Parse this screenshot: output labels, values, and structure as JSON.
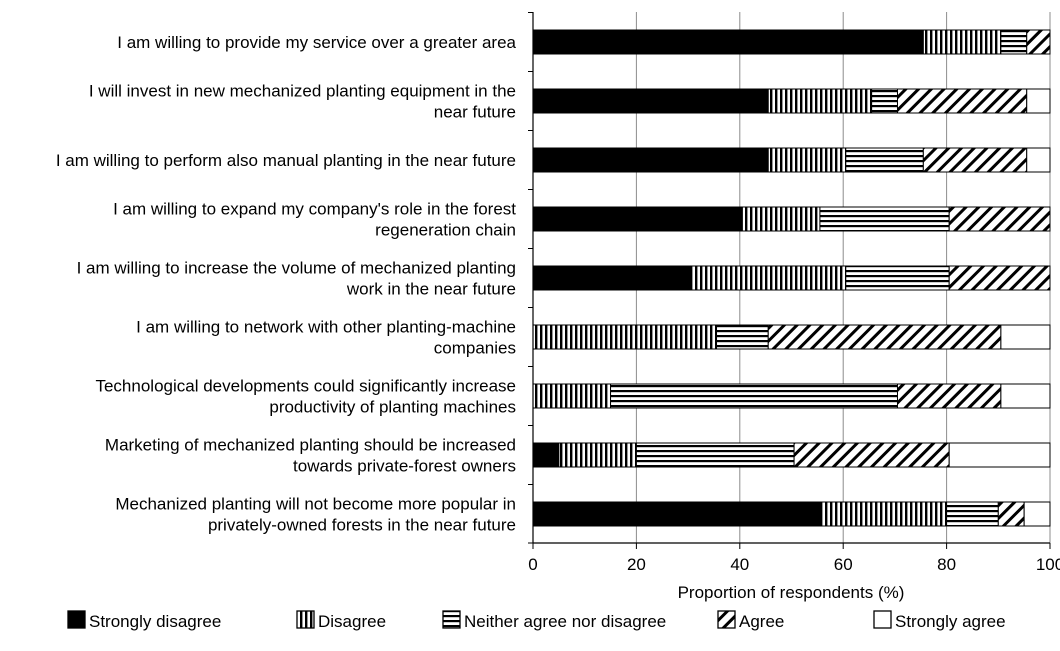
{
  "chart_data": {
    "type": "bar",
    "orientation": "horizontal",
    "stacked": true,
    "xlabel": "Proportion of respondents (%)",
    "xlim": [
      0,
      100
    ],
    "xticks": [
      0,
      20,
      40,
      60,
      80,
      100
    ],
    "xtick_labels": [
      "0",
      "20",
      "40",
      "60",
      "80",
      "100"
    ],
    "grid": "vertical",
    "legend_position": "bottom",
    "categories": [
      [
        "I am willing to provide my service over a greater area"
      ],
      [
        "I will invest in new mechanized planting equipment in the",
        "near future"
      ],
      [
        "I am willing to perform also manual planting in the near future"
      ],
      [
        "I am willing to expand my company's role in the forest",
        "regeneration chain"
      ],
      [
        "I am willing to increase the volume of mechanized planting",
        "work in the near future"
      ],
      [
        "I am willing to network with other planting-machine",
        "companies"
      ],
      [
        "Technological developments could significantly increase",
        "productivity of planting machines"
      ],
      [
        "Marketing of mechanized planting should be increased",
        "towards private-forest owners"
      ],
      [
        "Mechanized planting will not become more popular in",
        "privately-owned forests in the near future"
      ]
    ],
    "series": [
      {
        "name": "Strongly disagree",
        "pattern": "solid",
        "values": [
          75.5,
          45.5,
          45.5,
          40.5,
          30.5,
          0,
          0,
          5,
          55.5
        ]
      },
      {
        "name": "Disagree",
        "pattern": "vertical",
        "values": [
          15,
          20,
          15,
          15,
          30,
          35.5,
          15,
          15,
          24.5
        ]
      },
      {
        "name": "Neither agree nor disagree",
        "pattern": "horizontal",
        "values": [
          5,
          5,
          15,
          25,
          20,
          10,
          55.5,
          30.5,
          10
        ]
      },
      {
        "name": "Agree",
        "pattern": "diagonal",
        "values": [
          4.5,
          25,
          20,
          19.5,
          19.5,
          45,
          20,
          30,
          5
        ]
      },
      {
        "name": "Strongly agree",
        "pattern": "empty",
        "values": [
          0,
          4.5,
          4.5,
          0,
          0,
          9.5,
          9.5,
          19.5,
          5
        ]
      }
    ],
    "colors": {
      "ink": "#000000",
      "grid": "#8c8c8c",
      "fill_empty": "#ffffff"
    }
  }
}
